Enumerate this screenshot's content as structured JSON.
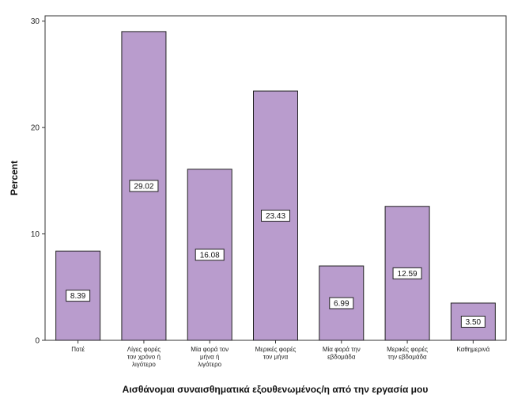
{
  "chart_data": {
    "type": "bar",
    "categories": [
      [
        "Ποτέ"
      ],
      [
        "Λίγες φορές",
        "τον χρόνο ή",
        "λιγότερο"
      ],
      [
        "Μία φορά τον",
        "μήνα ή",
        "λιγότερο"
      ],
      [
        "Μερικές φορές",
        "τον μήνα"
      ],
      [
        "Μία φορά την",
        "εβδομάδα"
      ],
      [
        "Μερικές φορές",
        "την εβδομάδα"
      ],
      [
        "Καθημερινά"
      ]
    ],
    "values": [
      8.39,
      29.02,
      16.08,
      23.43,
      6.99,
      12.59,
      3.5
    ],
    "data_labels": [
      "8.39",
      "29.02",
      "16.08",
      "23.43",
      "6.99",
      "12.59",
      "3.50"
    ],
    "yticks": [
      "0",
      "10",
      "20",
      "30"
    ],
    "ylim": [
      0,
      30.5
    ],
    "ylabel": "Percent",
    "xlabel": "Αισθάνομαι συναισθηματικά εξουθενωμένος/η από την εργασία μου",
    "grid": false,
    "colors": {
      "bar_fill": "#b99ccd",
      "bar_stroke": "#222222",
      "frame": "#333333"
    }
  }
}
